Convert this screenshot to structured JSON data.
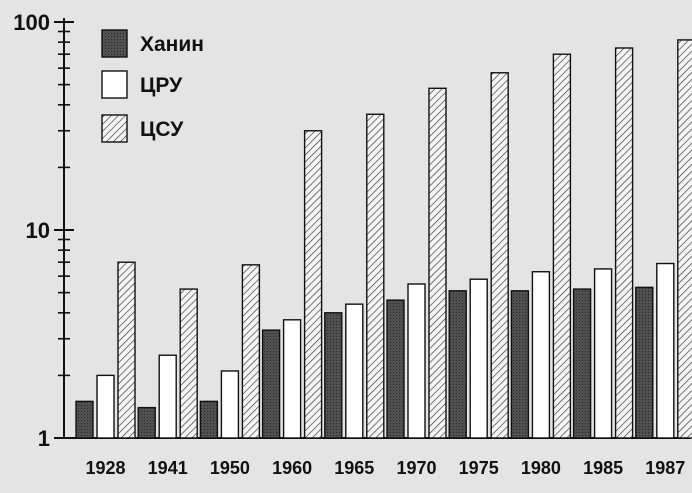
{
  "chart_data": {
    "type": "bar",
    "title": "",
    "xlabel": "",
    "ylabel": "",
    "yscale": "log",
    "ylim": [
      1,
      100
    ],
    "y_ticks": [
      {
        "value": 1,
        "label": "1"
      },
      {
        "value": 10,
        "label": "10"
      },
      {
        "value": 100,
        "label": "100"
      }
    ],
    "categories": [
      "1928",
      "1941",
      "1950",
      "1960",
      "1965",
      "1970",
      "1975",
      "1980",
      "1985",
      "1987"
    ],
    "series": [
      {
        "name": "Ханин",
        "pattern": "dark",
        "color": "#4a4a4a",
        "values": [
          1.5,
          1.4,
          1.5,
          3.3,
          4.0,
          4.6,
          5.1,
          5.1,
          5.2,
          5.3
        ]
      },
      {
        "name": "ЦРУ",
        "pattern": "white",
        "color": "#ffffff",
        "values": [
          2.0,
          2.5,
          2.1,
          3.7,
          4.4,
          5.5,
          5.8,
          6.3,
          6.5,
          6.9
        ]
      },
      {
        "name": "ЦСУ",
        "pattern": "hatched",
        "color": "#f2f2f2",
        "values": [
          7.0,
          5.2,
          6.8,
          30,
          36,
          48,
          57,
          70,
          75,
          82
        ]
      }
    ],
    "legend_position": "top-left",
    "grid": false
  }
}
